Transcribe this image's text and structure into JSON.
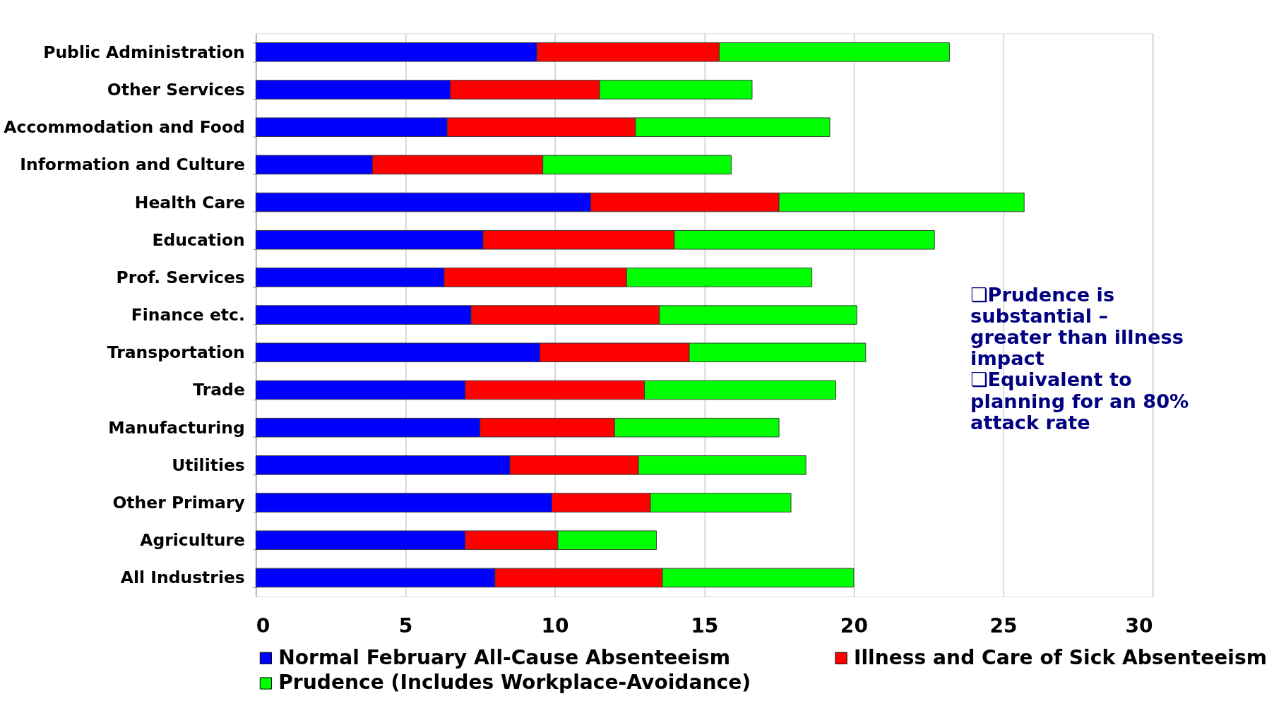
{
  "chart_data": {
    "type": "bar",
    "orientation": "horizontal",
    "stacked": true,
    "categories": [
      "Public Administration",
      "Other Services",
      "Accommodation and Food",
      "Information and Culture",
      "Health Care",
      "Education",
      "Prof. Services",
      "Finance etc.",
      "Transportation",
      "Trade",
      "Manufacturing",
      "Utilities",
      "Other Primary",
      "Agriculture",
      "All Industries"
    ],
    "series": [
      {
        "name": "Normal February All-Cause Absenteeism",
        "color": "#0000ff",
        "values": [
          9.4,
          6.5,
          6.4,
          3.9,
          11.2,
          7.6,
          6.3,
          7.2,
          9.5,
          7.0,
          7.5,
          8.5,
          9.9,
          7.0,
          8.0
        ]
      },
      {
        "name": "Illness and Care of Sick Absenteeism",
        "color": "#ff0000",
        "values": [
          6.1,
          5.0,
          6.3,
          5.7,
          6.3,
          6.4,
          6.1,
          6.3,
          5.0,
          6.0,
          4.5,
          4.3,
          3.3,
          3.1,
          5.6
        ]
      },
      {
        "name": "Prudence (Includes Workplace-Avoidance)",
        "color": "#00ff00",
        "values": [
          7.7,
          5.1,
          6.5,
          6.3,
          8.2,
          8.7,
          6.2,
          6.6,
          5.9,
          6.4,
          5.5,
          5.6,
          4.7,
          3.3,
          6.4
        ]
      }
    ],
    "xlim": [
      0,
      30
    ],
    "xticks": [
      0,
      5,
      10,
      15,
      20,
      25,
      30
    ],
    "grid": "x",
    "legend": "bottom",
    "annotations": [
      "❏Prudence is substantial – greater than illness impact",
      "❏Equivalent to planning for an 80% attack rate"
    ]
  }
}
